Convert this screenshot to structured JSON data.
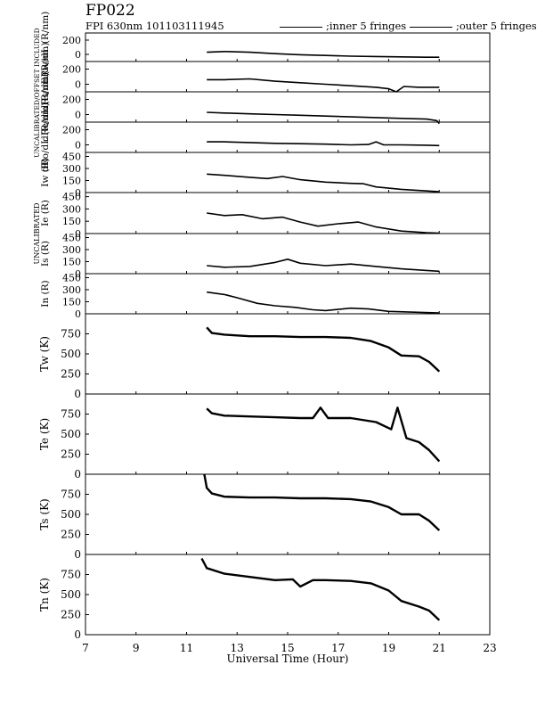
{
  "title": "FP022",
  "subtitle": "FPI 630nm 101103111945",
  "legend": {
    "inner": ";inner 5 fringes",
    "outer": ";outer 5 fringes"
  },
  "xlabel": "Universal Time (Hour)",
  "left_annotations": {
    "top": "UNCALIBRATED/OFFSET INCLUDED",
    "bottom": "UNCALIBRATED"
  },
  "chart_data": {
    "type": "line",
    "xlim": [
      7,
      23
    ],
    "xticks": [
      7,
      9,
      11,
      13,
      15,
      17,
      19,
      21,
      23
    ],
    "panels": [
      {
        "ylabel": "dRw/dL (R/nm)",
        "ylim": [
          -100,
          300
        ],
        "yticks": [
          0,
          200
        ],
        "x": [
          11.8,
          12.5,
          13.5,
          14.5,
          15.5,
          16.5,
          17.5,
          18.5,
          19.5,
          20.5,
          21
        ],
        "y": [
          30,
          40,
          30,
          10,
          -5,
          -15,
          -25,
          -30,
          -35,
          -40,
          -40
        ]
      },
      {
        "ylabel": "dRs/dL (R/nm)",
        "ylim": [
          -100,
          300
        ],
        "yticks": [
          0,
          200
        ],
        "x": [
          11.8,
          12.5,
          13.5,
          14.5,
          15.5,
          16.5,
          17.5,
          18.5,
          19.0,
          19.3,
          19.6,
          20.2,
          21
        ],
        "y": [
          60,
          60,
          70,
          40,
          20,
          0,
          -20,
          -40,
          -60,
          -100,
          -30,
          -40,
          -40
        ]
      },
      {
        "ylabel": "dRe/dL (R/nm)",
        "ylim": [
          -100,
          300
        ],
        "yticks": [
          0,
          200
        ],
        "x": [
          11.8,
          12.5,
          13.5,
          14.5,
          15.5,
          16.5,
          17.5,
          18.5,
          19.5,
          20.5,
          20.9,
          21
        ],
        "y": [
          30,
          20,
          10,
          0,
          -10,
          -20,
          -30,
          -40,
          -50,
          -60,
          -80,
          -120
        ]
      },
      {
        "ylabel": "dRo/dL (R/nm)",
        "ylim": [
          -100,
          300
        ],
        "yticks": [
          0,
          200
        ],
        "x": [
          11.8,
          12.5,
          13.5,
          14.5,
          15.5,
          16.5,
          17.5,
          18.2,
          18.5,
          18.8,
          19.5,
          20.5,
          21
        ],
        "y": [
          40,
          40,
          30,
          20,
          15,
          10,
          0,
          5,
          40,
          0,
          0,
          -5,
          -10
        ]
      },
      {
        "ylabel": "Iw (R)",
        "ylim": [
          0,
          500
        ],
        "yticks": [
          0,
          150,
          300,
          450
        ],
        "x": [
          11.8,
          12.5,
          13.5,
          14.2,
          14.8,
          15.5,
          16.5,
          17.5,
          18.0,
          18.5,
          19.5,
          20.5,
          21
        ],
        "y": [
          230,
          215,
          190,
          175,
          200,
          160,
          130,
          115,
          110,
          70,
          40,
          20,
          10
        ]
      },
      {
        "ylabel": "Ie (R)",
        "ylim": [
          0,
          500
        ],
        "yticks": [
          0,
          150,
          300,
          450
        ],
        "x": [
          11.8,
          12.5,
          13.2,
          14.0,
          14.8,
          15.5,
          16.2,
          17.0,
          17.8,
          18.5,
          19.5,
          20.5,
          21
        ],
        "y": [
          250,
          220,
          230,
          180,
          200,
          140,
          90,
          120,
          140,
          80,
          30,
          10,
          5
        ]
      },
      {
        "ylabel": "Is (R)",
        "ylim": [
          0,
          500
        ],
        "yticks": [
          0,
          150,
          300,
          450
        ],
        "x": [
          11.8,
          12.5,
          13.5,
          14.5,
          15.0,
          15.5,
          16.5,
          17.5,
          18.5,
          19.5,
          20.5,
          21
        ],
        "y": [
          100,
          80,
          90,
          140,
          180,
          130,
          100,
          120,
          90,
          60,
          40,
          30
        ]
      },
      {
        "ylabel": "In (R)",
        "ylim": [
          0,
          500
        ],
        "yticks": [
          0,
          150,
          300,
          450
        ],
        "x": [
          11.8,
          12.5,
          13.0,
          13.8,
          14.5,
          15.3,
          16.0,
          16.5,
          17.5,
          18.2,
          19.0,
          20.0,
          21
        ],
        "y": [
          270,
          240,
          200,
          130,
          100,
          80,
          50,
          40,
          70,
          60,
          30,
          20,
          10
        ]
      },
      {
        "ylabel": "Tw (K)",
        "ylim": [
          0,
          1000
        ],
        "yticks": [
          0,
          250,
          500,
          750
        ],
        "x": [
          11.8,
          12.0,
          12.5,
          13.5,
          14.5,
          15.5,
          16.5,
          17.5,
          18.3,
          19.0,
          19.5,
          20.2,
          20.6,
          21
        ],
        "y": [
          830,
          760,
          740,
          720,
          720,
          710,
          710,
          700,
          660,
          580,
          480,
          470,
          400,
          280
        ]
      },
      {
        "ylabel": "Te (K)",
        "ylim": [
          0,
          1000
        ],
        "yticks": [
          0,
          250,
          500,
          750
        ],
        "x": [
          11.8,
          12.0,
          12.5,
          13.5,
          14.5,
          15.5,
          16.0,
          16.3,
          16.6,
          17.5,
          18.5,
          19.1,
          19.35,
          19.7,
          20.2,
          20.6,
          21
        ],
        "y": [
          820,
          760,
          730,
          720,
          710,
          700,
          700,
          830,
          700,
          700,
          650,
          560,
          830,
          450,
          400,
          300,
          160
        ]
      },
      {
        "ylabel": "Ts (K)",
        "ylim": [
          0,
          1000
        ],
        "yticks": [
          0,
          250,
          500,
          750
        ],
        "x": [
          11.7,
          11.8,
          12.0,
          12.5,
          13.5,
          14.5,
          15.5,
          16.5,
          17.5,
          18.3,
          19.0,
          19.5,
          20.2,
          20.6,
          21
        ],
        "y": [
          1000,
          830,
          760,
          720,
          710,
          710,
          700,
          700,
          690,
          660,
          590,
          500,
          500,
          420,
          300
        ]
      },
      {
        "ylabel": "Tn (K)",
        "ylim": [
          0,
          1000
        ],
        "yticks": [
          0,
          250,
          500,
          750
        ],
        "x": [
          11.6,
          11.8,
          12.5,
          13.5,
          14.5,
          15.2,
          15.5,
          16.0,
          16.5,
          17.5,
          18.3,
          19.0,
          19.5,
          20.2,
          20.6,
          21
        ],
        "y": [
          950,
          830,
          760,
          720,
          680,
          690,
          600,
          680,
          680,
          670,
          640,
          550,
          420,
          350,
          300,
          180
        ]
      }
    ]
  }
}
